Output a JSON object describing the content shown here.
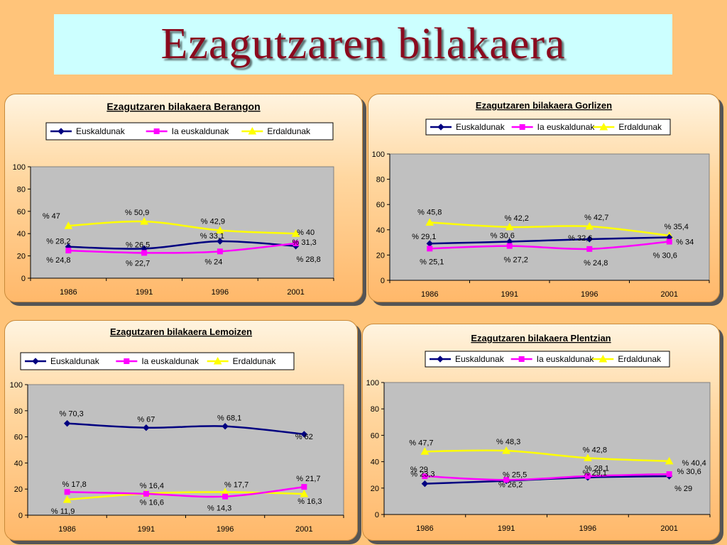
{
  "slide": {
    "title": "Ezagutzaren bilakaera"
  },
  "colors": {
    "euskaldunak": "#000080",
    "ia_euskaldunak": "#FF00FF",
    "erdaldunak": "#FFFF00",
    "plot_bg": "#C0C0C0"
  },
  "legend_labels": [
    "Euskaldunak",
    "Ia euskaldunak",
    "Erdaldunak"
  ],
  "chart_data": [
    {
      "type": "line",
      "title": "Ezagutzaren bilakaera Berangon",
      "x": [
        "1986",
        "1991",
        "1996",
        "2001"
      ],
      "ylim": [
        0,
        100
      ],
      "yticks": [
        "0",
        "20",
        "40",
        "60",
        "80",
        "100"
      ],
      "legend": "top",
      "series": [
        {
          "name": "Euskaldunak",
          "values": [
            28.2,
            26.5,
            33.1,
            28.8
          ],
          "labels": [
            "% 28,2",
            "% 26,5",
            "% 33,1",
            "% 28,8"
          ]
        },
        {
          "name": "Ia euskaldunak",
          "values": [
            24.8,
            22.7,
            24,
            31.3
          ],
          "labels": [
            "% 24,8",
            "% 22,7",
            "% 24",
            "% 31,3"
          ]
        },
        {
          "name": "Erdaldunak",
          "values": [
            47,
            50.9,
            42.9,
            40
          ],
          "labels": [
            "% 47",
            "% 50,9",
            "% 42,9",
            "% 40"
          ]
        }
      ]
    },
    {
      "type": "line",
      "title": "Ezagutzaren bilakaera Gorlizen",
      "x": [
        "1986",
        "1991",
        "1996",
        "2001"
      ],
      "ylim": [
        0,
        100
      ],
      "yticks": [
        "0",
        "20",
        "40",
        "60",
        "80",
        "100"
      ],
      "legend": "top",
      "series": [
        {
          "name": "Euskaldunak",
          "values": [
            29.1,
            30.6,
            32.6,
            34
          ],
          "labels": [
            "% 29,1",
            "% 30,6",
            "% 32,6",
            "% 34"
          ]
        },
        {
          "name": "Ia euskaldunak",
          "values": [
            25.1,
            27.2,
            24.8,
            30.6
          ],
          "labels": [
            "% 25,1",
            "% 27,2",
            "% 24,8",
            "% 30,6"
          ]
        },
        {
          "name": "Erdaldunak",
          "values": [
            45.8,
            42.2,
            42.7,
            35.4
          ],
          "labels": [
            "% 45,8",
            "% 42,2",
            "% 42,7",
            "% 35,4"
          ]
        }
      ]
    },
    {
      "type": "line",
      "title": "Ezagutzaren bilakaera Lemoizen",
      "x": [
        "1986",
        "1991",
        "1996",
        "2001"
      ],
      "ylim": [
        0,
        100
      ],
      "yticks": [
        "0",
        "20",
        "40",
        "60",
        "80",
        "100"
      ],
      "legend": "top",
      "series": [
        {
          "name": "Euskaldunak",
          "values": [
            70.3,
            67,
            68.1,
            62
          ],
          "labels": [
            "% 70,3",
            "% 67",
            "% 68,1",
            "% 62"
          ]
        },
        {
          "name": "Ia euskaldunak",
          "values": [
            17.8,
            16.4,
            14.3,
            21.7
          ],
          "labels": [
            "% 17,8",
            "% 16,4",
            "% 14,3",
            "% 21,7"
          ]
        },
        {
          "name": "Erdaldunak",
          "values": [
            11.9,
            16.6,
            17.7,
            16.3
          ],
          "labels": [
            "% 11,9",
            "% 16,6",
            "% 17,7",
            "% 16,3"
          ]
        }
      ]
    },
    {
      "type": "line",
      "title": "Ezagutzaren bilakaera Plentzian",
      "x": [
        "1986",
        "1991",
        "1996",
        "2001"
      ],
      "ylim": [
        0,
        100
      ],
      "yticks": [
        "0",
        "20",
        "40",
        "60",
        "80",
        "100"
      ],
      "legend": "top",
      "series": [
        {
          "name": "Euskaldunak",
          "values": [
            23.3,
            25.5,
            28.1,
            29
          ],
          "labels": [
            "% 23,3",
            "% 25,5",
            "% 28,1",
            "% 29"
          ]
        },
        {
          "name": "Ia euskaldunak",
          "values": [
            29,
            26.2,
            29.1,
            30.6
          ],
          "labels": [
            "% 29",
            "% 26,2",
            "% 29,1",
            "% 30,6"
          ]
        },
        {
          "name": "Erdaldunak",
          "values": [
            47.7,
            48.3,
            42.8,
            40.4
          ],
          "labels": [
            "% 47,7",
            "% 48,3",
            "% 42,8",
            "% 40,4"
          ]
        }
      ]
    }
  ]
}
